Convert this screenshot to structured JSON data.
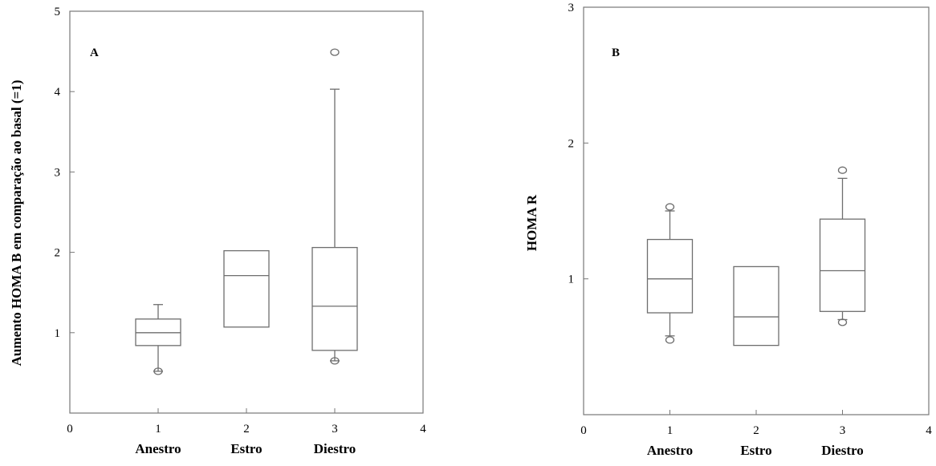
{
  "chart_data": [
    {
      "type": "box",
      "panel_label": "A",
      "ylabel": "Aumento HOMA B em comparação ao basal (=1)",
      "xlabel": "",
      "xlim": [
        0,
        4
      ],
      "ylim": [
        0,
        5
      ],
      "x_ticks": [
        "0",
        "1",
        "2",
        "3",
        "4"
      ],
      "y_ticks": [
        "1",
        "2",
        "3",
        "4",
        "5"
      ],
      "categories": [
        "Anestro",
        "Estro",
        "Diestro"
      ],
      "boxes": [
        {
          "x": 1,
          "whisker_low": 0.52,
          "q1": 0.84,
          "median": 1.0,
          "q3": 1.17,
          "whisker_high": 1.35,
          "outliers": [
            0.52
          ]
        },
        {
          "x": 2,
          "whisker_low": 1.07,
          "q1": 1.07,
          "median": 1.71,
          "q3": 2.02,
          "whisker_high": 2.02,
          "outliers": []
        },
        {
          "x": 3,
          "whisker_low": 0.65,
          "q1": 0.78,
          "median": 1.33,
          "q3": 2.06,
          "whisker_high": 4.03,
          "outliers": [
            0.65,
            4.49
          ]
        }
      ]
    },
    {
      "type": "box",
      "panel_label": "B",
      "ylabel": "HOMA R",
      "xlabel": "",
      "xlim": [
        0,
        4
      ],
      "ylim": [
        0,
        3
      ],
      "x_ticks": [
        "0",
        "1",
        "2",
        "3",
        "4"
      ],
      "y_ticks": [
        "1",
        "2",
        "3"
      ],
      "categories": [
        "Anestro",
        "Estro",
        "Diestro"
      ],
      "boxes": [
        {
          "x": 1,
          "whisker_low": 0.58,
          "q1": 0.75,
          "median": 1.0,
          "q3": 1.29,
          "whisker_high": 1.5,
          "outliers": [
            0.55,
            1.53
          ]
        },
        {
          "x": 2,
          "whisker_low": 0.51,
          "q1": 0.51,
          "median": 0.72,
          "q3": 1.09,
          "whisker_high": 1.09,
          "outliers": []
        },
        {
          "x": 3,
          "whisker_low": 0.7,
          "q1": 0.76,
          "median": 1.06,
          "q3": 1.44,
          "whisker_high": 1.74,
          "outliers": [
            0.68,
            1.8
          ]
        }
      ]
    }
  ]
}
